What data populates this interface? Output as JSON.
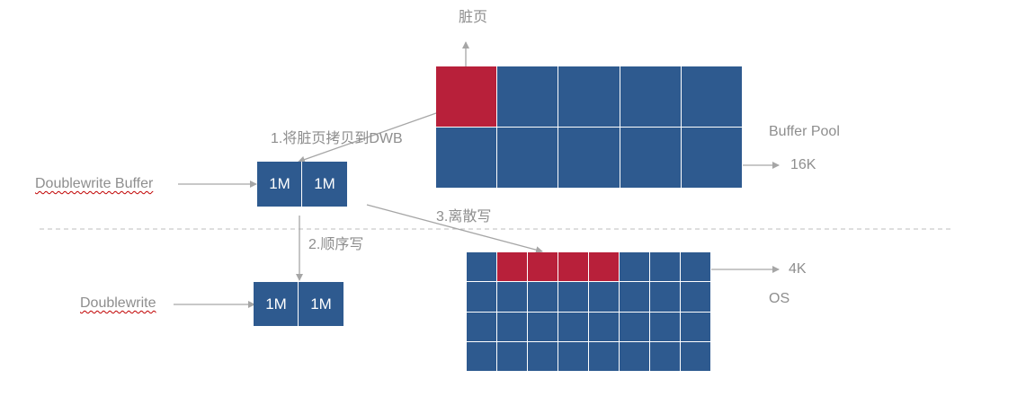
{
  "labels": {
    "dirty_page": "脏页",
    "step1": "1.将脏页拷贝到DWB",
    "buffer_pool": "Buffer Pool",
    "page16k": "16K",
    "doublewrite_buffer": "Doublewrite Buffer",
    "step2": "2.顺序写",
    "step3": "3.离散写",
    "doublewrite": "Doublewrite",
    "page4k": "4K",
    "os": "OS"
  },
  "dwb_buffer_blocks": [
    "1M",
    "1M"
  ],
  "dwb_disk_blocks": [
    "1M",
    "1M"
  ],
  "buffer_pool_grid": {
    "rows": 2,
    "cols": 5,
    "dirty_cells": [
      [
        0,
        0
      ]
    ]
  },
  "os_grid": {
    "rows": 4,
    "cols": 8,
    "dirty_cells": [
      [
        0,
        1
      ],
      [
        0,
        2
      ],
      [
        0,
        3
      ],
      [
        0,
        4
      ]
    ]
  },
  "colors": {
    "page_blue": "#2e5a8f",
    "dirty_red": "#b8203a",
    "arrow_gray": "#a6a6a6",
    "label_gray": "#8e8e8e"
  }
}
